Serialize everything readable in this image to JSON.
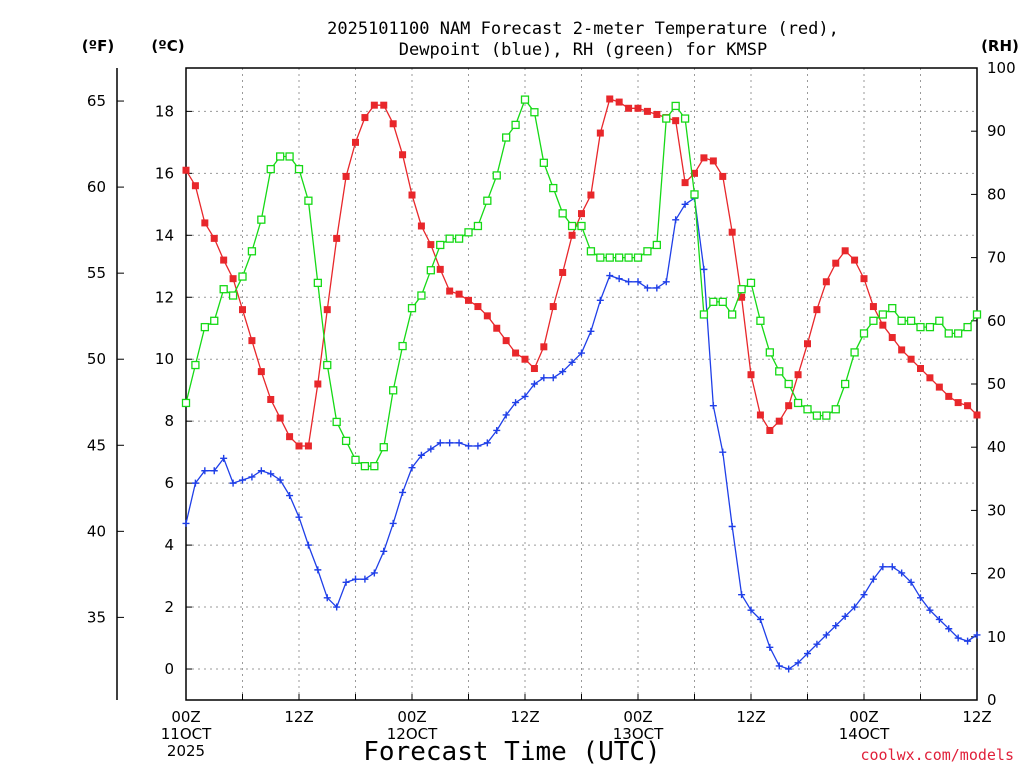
{
  "chart_data": {
    "type": "line",
    "title_lines": [
      "2025101100 NAM Forecast 2-meter Temperature (red),",
      "Dewpoint (blue), RH (green) for KMSP"
    ],
    "xlabel": "Forecast Time (UTC)",
    "credit": "coolwx.com/models",
    "axes": {
      "fahrenheit": {
        "label": "(ºF)",
        "ticks": [
          35,
          40,
          45,
          50,
          55,
          60,
          65
        ]
      },
      "celsius": {
        "label": "(ºC)",
        "ticks": [
          0,
          2,
          4,
          6,
          8,
          10,
          12,
          14,
          16,
          18
        ],
        "ylim": [
          -1,
          19.4
        ]
      },
      "rh": {
        "label": "(RH)",
        "ticks": [
          0,
          10,
          20,
          30,
          40,
          50,
          60,
          70,
          80,
          90,
          100
        ],
        "ylim": [
          0,
          100
        ]
      }
    },
    "x_range_hours": [
      0,
      84
    ],
    "x_ticks": [
      {
        "hour": 0,
        "lines": [
          "00Z",
          "11OCT",
          "2025"
        ]
      },
      {
        "hour": 12,
        "lines": [
          "12Z"
        ]
      },
      {
        "hour": 24,
        "lines": [
          "00Z",
          "12OCT"
        ]
      },
      {
        "hour": 36,
        "lines": [
          "12Z"
        ]
      },
      {
        "hour": 48,
        "lines": [
          "00Z",
          "13OCT"
        ]
      },
      {
        "hour": 60,
        "lines": [
          "12Z"
        ]
      },
      {
        "hour": 72,
        "lines": [
          "00Z",
          "14OCT"
        ]
      },
      {
        "hour": 84,
        "lines": [
          "12Z"
        ]
      }
    ],
    "x": [
      0,
      1,
      2,
      3,
      4,
      5,
      6,
      7,
      8,
      9,
      10,
      11,
      12,
      13,
      14,
      15,
      16,
      17,
      18,
      19,
      20,
      21,
      22,
      23,
      24,
      25,
      26,
      27,
      28,
      29,
      30,
      31,
      32,
      33,
      34,
      35,
      36,
      37,
      38,
      39,
      40,
      41,
      42,
      43,
      44,
      45,
      46,
      47,
      48,
      49,
      50,
      51,
      52,
      53,
      54,
      55,
      56,
      57,
      58,
      59,
      60,
      61,
      62,
      63,
      64,
      65,
      66,
      67,
      68,
      69,
      70,
      71,
      72,
      73,
      74,
      75,
      76,
      77,
      78,
      79,
      80,
      81,
      82,
      83,
      84
    ],
    "series": [
      {
        "name": "Temperature",
        "axis": "celsius",
        "color": "#e8272b",
        "marker": "filled-square",
        "values": [
          16.1,
          15.6,
          14.4,
          13.9,
          13.2,
          12.6,
          11.6,
          10.6,
          9.6,
          8.7,
          8.1,
          7.5,
          7.2,
          7.2,
          9.2,
          11.6,
          13.9,
          15.9,
          17.0,
          17.8,
          18.2,
          18.2,
          17.6,
          16.6,
          15.3,
          14.3,
          13.7,
          12.9,
          12.2,
          12.1,
          11.9,
          11.7,
          11.4,
          11.0,
          10.6,
          10.2,
          10.0,
          9.7,
          10.4,
          11.7,
          12.8,
          14.0,
          14.7,
          15.3,
          17.3,
          18.4,
          18.3,
          18.1,
          18.1,
          18.0,
          17.9,
          17.8,
          17.7,
          15.7,
          16.0,
          16.5,
          16.4,
          15.9,
          14.1,
          12.0,
          9.5,
          8.2,
          7.7,
          8.0,
          8.5,
          9.5,
          10.5,
          11.6,
          12.5,
          13.1,
          13.5,
          13.2,
          12.6,
          11.7,
          11.1,
          10.7,
          10.3,
          10.0,
          9.7,
          9.4,
          9.1,
          8.8,
          8.6,
          8.5,
          8.2
        ]
      },
      {
        "name": "Dewpoint",
        "axis": "celsius",
        "color": "#1f3fe8",
        "marker": "plus",
        "values": [
          4.7,
          6.0,
          6.4,
          6.4,
          6.8,
          6.0,
          6.1,
          6.2,
          6.4,
          6.3,
          6.1,
          5.6,
          4.9,
          4.0,
          3.2,
          2.3,
          2.0,
          2.8,
          2.9,
          2.9,
          3.1,
          3.8,
          4.7,
          5.7,
          6.5,
          6.9,
          7.1,
          7.3,
          7.3,
          7.3,
          7.2,
          7.2,
          7.3,
          7.7,
          8.2,
          8.6,
          8.8,
          9.2,
          9.4,
          9.4,
          9.6,
          9.9,
          10.2,
          10.9,
          11.9,
          12.7,
          12.6,
          12.5,
          12.5,
          12.3,
          12.3,
          12.5,
          14.5,
          15.0,
          15.2,
          12.9,
          8.5,
          7.0,
          4.6,
          2.4,
          1.9,
          1.6,
          0.7,
          0.1,
          0.0,
          0.2,
          0.5,
          0.8,
          1.1,
          1.4,
          1.7,
          2.0,
          2.4,
          2.9,
          3.3,
          3.3,
          3.1,
          2.8,
          2.3,
          1.9,
          1.6,
          1.3,
          1.0,
          0.9,
          1.1
        ]
      },
      {
        "name": "RH",
        "axis": "rh",
        "color": "#16d916",
        "marker": "open-square",
        "values": [
          47,
          53,
          59,
          60,
          65,
          64,
          67,
          71,
          76,
          84,
          86,
          86,
          84,
          79,
          66,
          53,
          44,
          41,
          38,
          37,
          37,
          40,
          49,
          56,
          62,
          64,
          68,
          72,
          73,
          73,
          74,
          75,
          79,
          83,
          89,
          91,
          95,
          93,
          85,
          81,
          77,
          75,
          75,
          71,
          70,
          70,
          70,
          70,
          70,
          71,
          72,
          92,
          94,
          92,
          80,
          61,
          63,
          63,
          61,
          65,
          66,
          60,
          55,
          52,
          50,
          47,
          46,
          45,
          45,
          46,
          50,
          55,
          58,
          60,
          61,
          62,
          60,
          60,
          59,
          59,
          60,
          58,
          58,
          59,
          61
        ]
      }
    ]
  }
}
